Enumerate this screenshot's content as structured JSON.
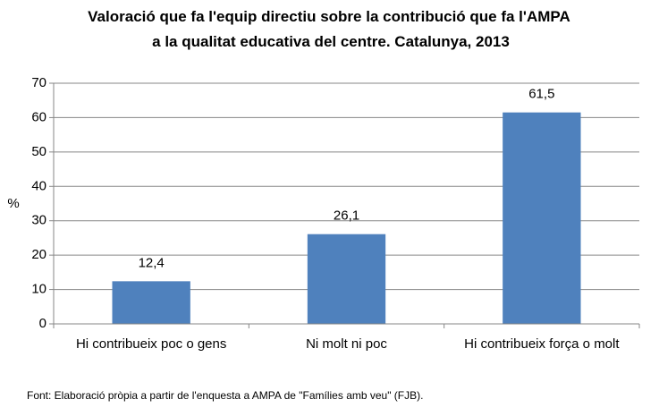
{
  "chart_data": {
    "type": "bar",
    "title": "Valoració que fa l'equip directiu sobre la contribució que fa l'AMPA a la qualitat educativa del centre. Catalunya, 2013",
    "y_label": "%",
    "categories": [
      "Hi contribueix poc o gens",
      "Ni molt ni poc",
      "Hi contribueix força o molt"
    ],
    "values": [
      12.4,
      26.1,
      61.5
    ],
    "value_labels": [
      "12,4",
      "26,1",
      "61,5"
    ],
    "color": "#4f81bd",
    "ylim": [
      0,
      70
    ],
    "yticks": [
      0,
      10,
      20,
      30,
      40,
      50,
      60,
      70
    ],
    "grid": true,
    "source": "Font: Elaboració pròpia a partir de l'enquesta a AMPA de \"Famílies amb veu\" (FJB)."
  }
}
